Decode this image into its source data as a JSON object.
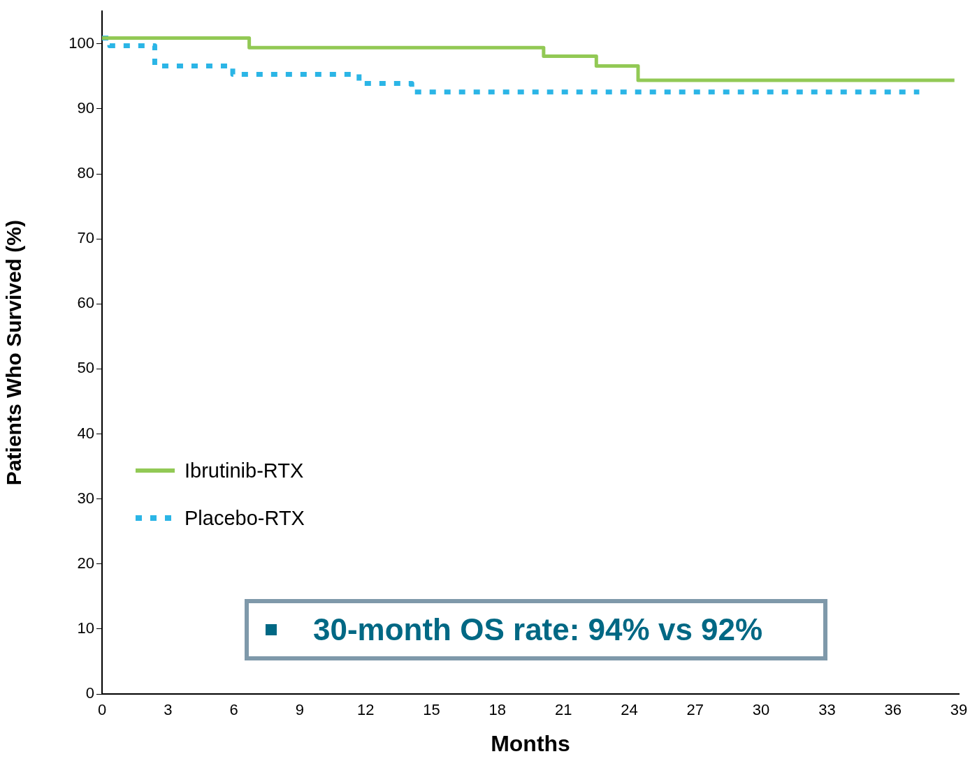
{
  "chart_data": {
    "type": "step",
    "xlabel": "Months",
    "ylabel": "Patients Who Survived (%)",
    "xlim": [
      0,
      39
    ],
    "xticks": [
      0,
      3,
      6,
      9,
      12,
      15,
      18,
      21,
      24,
      27,
      30,
      33,
      36,
      39
    ],
    "ylim": [
      0,
      105
    ],
    "yticks": [
      0,
      10,
      20,
      30,
      40,
      50,
      60,
      70,
      80,
      90,
      100
    ],
    "series": [
      {
        "name": "Ibrutinib-RTX",
        "color": "#92c955",
        "line_style": "solid",
        "x": [
          0,
          6.7,
          20.1,
          22.5,
          24.4,
          38.8
        ],
        "values": [
          100.9,
          99.4,
          98.1,
          96.6,
          94.4,
          94.4
        ]
      },
      {
        "name": "Placebo-RTX",
        "color": "#2bb5e6",
        "line_style": "dotted",
        "x": [
          0,
          0.35,
          2.4,
          5.95,
          11.7,
          14.1,
          37.2
        ],
        "values": [
          100.9,
          99.7,
          96.6,
          95.3,
          93.9,
          92.6,
          92.6
        ]
      }
    ],
    "legend": "left",
    "grid": false,
    "annotations": [
      "30-month OS rate: 94% vs 92%"
    ]
  }
}
